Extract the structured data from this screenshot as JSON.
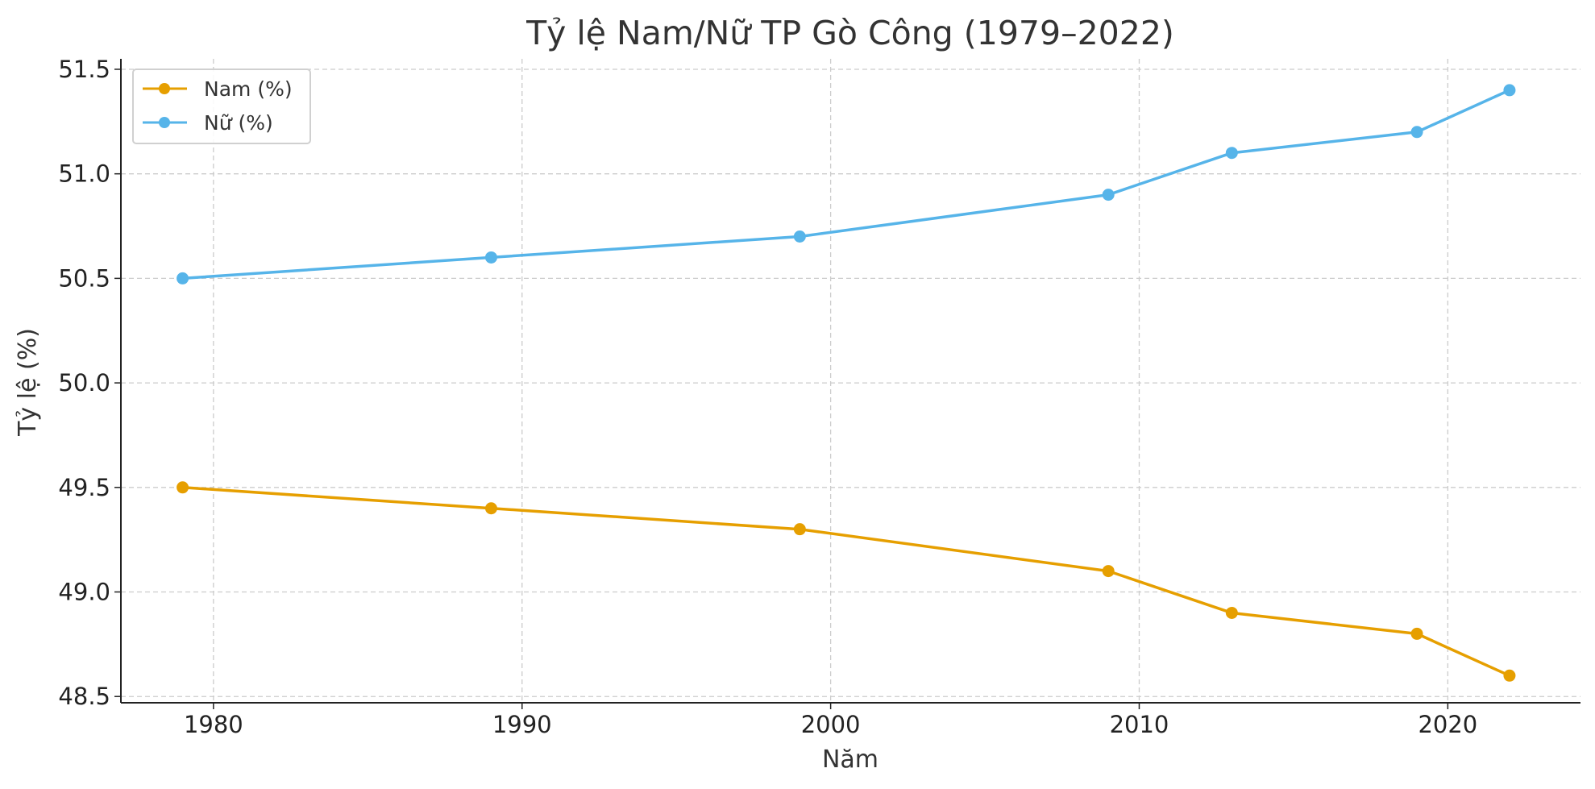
{
  "chart_data": {
    "type": "line",
    "title": "Tỷ lệ Nam/Nữ TP Gò Công (1979–2022)",
    "xlabel": "Năm",
    "ylabel": "Tỷ lệ (%)",
    "x": [
      1979,
      1989,
      1999,
      2009,
      2013,
      2019,
      2022
    ],
    "xlim": [
      1977,
      2024.3
    ],
    "ylim": [
      48.47,
      51.55
    ],
    "xticks": [
      1980,
      1990,
      2000,
      2010,
      2020
    ],
    "xtick_labels": [
      "1980",
      "1990",
      "2000",
      "2010",
      "2020"
    ],
    "yticks": [
      48.5,
      49.0,
      49.5,
      50.0,
      50.5,
      51.0,
      51.5
    ],
    "ytick_labels": [
      "48.5",
      "49.0",
      "49.5",
      "50.0",
      "50.5",
      "51.0",
      "51.5"
    ],
    "grid": true,
    "legend_position": "top-left",
    "series": [
      {
        "name": "Nam (%)",
        "color": "#E69F00",
        "values": [
          49.5,
          49.4,
          49.3,
          49.1,
          48.9,
          48.8,
          48.6
        ]
      },
      {
        "name": "Nữ (%)",
        "color": "#56B4E9",
        "values": [
          50.5,
          50.6,
          50.7,
          50.9,
          51.1,
          51.2,
          51.4
        ]
      }
    ]
  }
}
